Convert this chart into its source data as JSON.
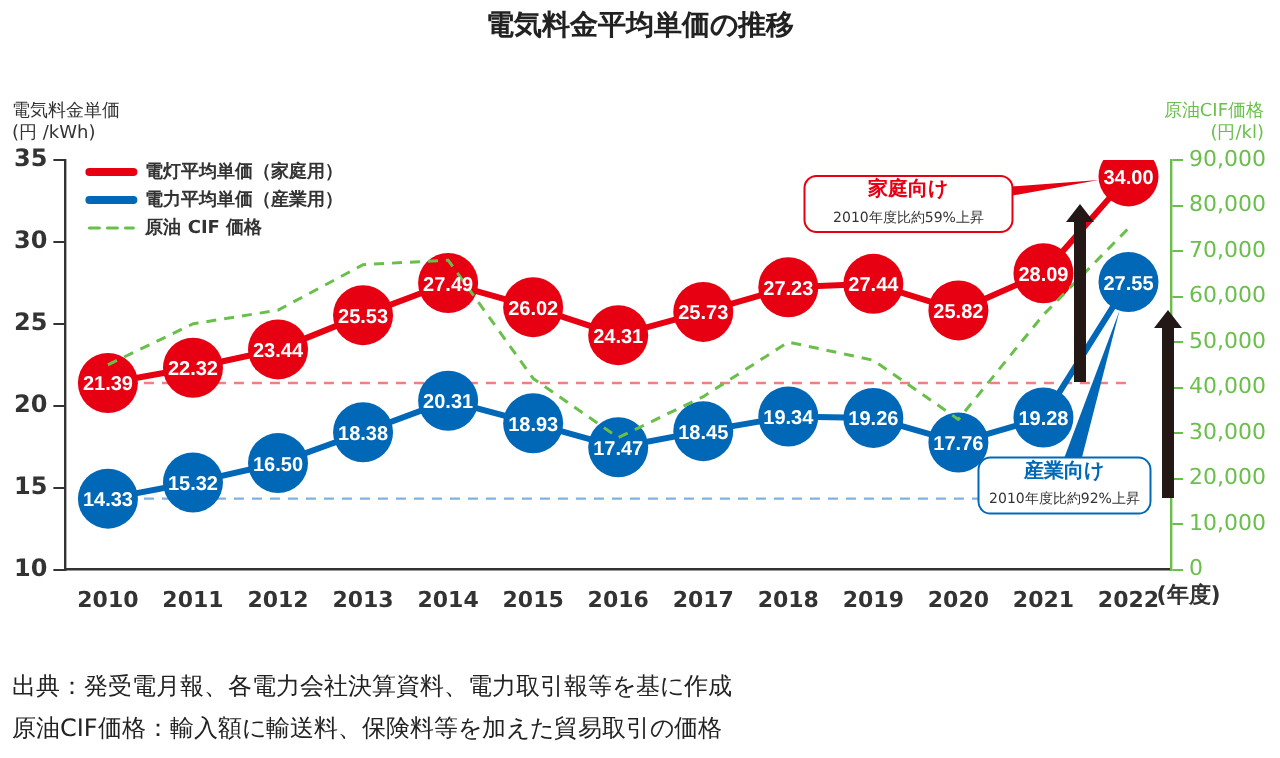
{
  "chart_data": {
    "type": "line",
    "title": "電気料金平均単価の推移",
    "xlabel": "(年度)",
    "ylabel": "電気料金単価\n(円 /kWh)",
    "y2label": "原油CIF価格\n(円/kl)",
    "categories": [
      "2010",
      "2011",
      "2012",
      "2013",
      "2014",
      "2015",
      "2016",
      "2017",
      "2018",
      "2019",
      "2020",
      "2021",
      "2022"
    ],
    "series": [
      {
        "name": "電灯平均単価（家庭用）",
        "color": "#e60012",
        "marker": "circle",
        "values": [
          21.39,
          22.32,
          23.44,
          25.53,
          27.49,
          26.02,
          24.31,
          25.73,
          27.23,
          27.44,
          25.82,
          28.09,
          34.0
        ],
        "value_labels": [
          "21.39",
          "22.32",
          "23.44",
          "25.53",
          "27.49",
          "26.02",
          "24.31",
          "25.73",
          "27.23",
          "27.44",
          "25.82",
          "28.09",
          "34.00"
        ]
      },
      {
        "name": "電力平均単価（産業用）",
        "color": "#0068b7",
        "marker": "circle",
        "values": [
          14.33,
          15.32,
          16.5,
          18.38,
          20.31,
          18.93,
          17.47,
          18.45,
          19.34,
          19.26,
          17.76,
          19.28,
          27.55
        ],
        "value_labels": [
          "14.33",
          "15.32",
          "16.50",
          "18.38",
          "20.31",
          "18.93",
          "17.47",
          "18.45",
          "19.34",
          "19.26",
          "17.76",
          "19.28",
          "27.55"
        ]
      },
      {
        "name": "原油 CIF 価格",
        "color": "#6abf4b",
        "marker": "none",
        "line_style": "dashed",
        "axis": "y2",
        "values": [
          45000,
          54000,
          57000,
          67000,
          68000,
          42000,
          29000,
          38000,
          50000,
          46000,
          33000,
          56000,
          75000
        ]
      }
    ],
    "ylim": [
      10,
      35
    ],
    "yticks": [
      10,
      15,
      20,
      25,
      30,
      35
    ],
    "y2lim": [
      0,
      90000
    ],
    "y2ticks": [
      0,
      {
        "value": 10000,
        "label": "10,000"
      },
      {
        "value": 20000,
        "label": "20,000"
      },
      {
        "value": 30000,
        "label": "30,000"
      },
      {
        "value": 40000,
        "label": "40,000"
      },
      {
        "value": 50000,
        "label": "50,000"
      },
      {
        "value": 60000,
        "label": "60,000"
      },
      {
        "value": 70000,
        "label": "70,000"
      },
      {
        "value": 80000,
        "label": "80,000"
      },
      {
        "value": 90000,
        "label": "90,000"
      }
    ],
    "ref_lines": [
      {
        "axis": "y",
        "value": 21.39,
        "color": "#f08080",
        "line_style": "dashed"
      },
      {
        "axis": "y",
        "value": 14.33,
        "color": "#7fb2e0",
        "line_style": "dashed"
      }
    ],
    "annotations": [
      "家庭向け\n2010年度比約59%上昇",
      "産業向け\n2010年度比約92%上昇",
      "出典：発受電月報、各電力会社決算資料、電力取引報等を基に作成",
      "原油CIF価格：輸入額に輸送料、保険料等を加えた貿易取引の価格"
    ],
    "grid": false,
    "legend": "top left"
  }
}
